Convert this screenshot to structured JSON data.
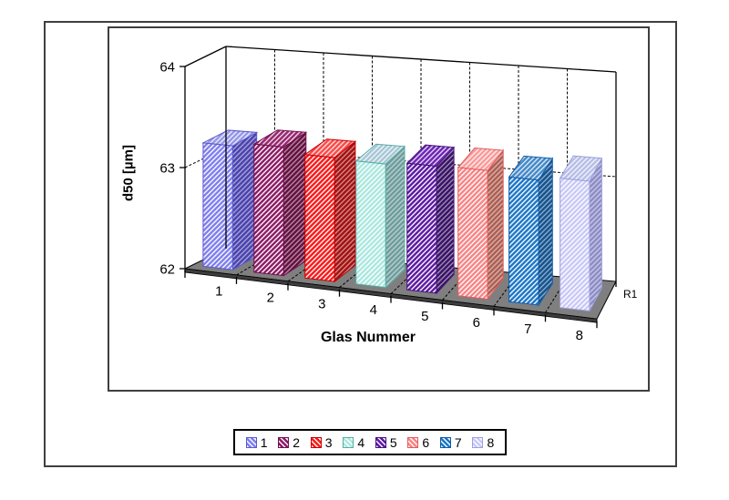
{
  "chart_data": {
    "type": "bar",
    "projection": "3d-perspective",
    "title": "",
    "xlabel": "Glas Nummer",
    "ylabel": "d50 [µm]",
    "series_label": "R1",
    "categories": [
      "1",
      "2",
      "3",
      "4",
      "5",
      "6",
      "7",
      "8"
    ],
    "values": [
      63.22,
      63.26,
      63.21,
      63.2,
      63.23,
      63.24,
      63.2,
      63.24
    ],
    "ylim": [
      62,
      64
    ],
    "yticks": [
      "62",
      "63",
      "64"
    ],
    "grid": "dashed horizontal at 63, dashed vertical at category boundaries",
    "legend": {
      "position": "bottom-center",
      "entries": [
        "1",
        "2",
        "3",
        "4",
        "5",
        "6",
        "7",
        "8"
      ]
    },
    "colors": {
      "front": [
        "#7F7FEF",
        "#8D1C66",
        "#FA1A1A",
        "#ABE7DF",
        "#5D1BA3",
        "#F88585",
        "#1E78C8",
        "#C9C9F7"
      ],
      "side": [
        "#4A42AE",
        "#64103F",
        "#A31010",
        "#6E9C9C",
        "#381265",
        "#AD5E52",
        "#15538F",
        "#8C8CC6"
      ],
      "top": [
        "#9595E8",
        "#97266F",
        "#FB4A4A",
        "#A6C6D6",
        "#6C25B3",
        "#F99A9A",
        "#4489C9",
        "#B6BEE6"
      ],
      "border": [
        "#5A5ACD",
        "#70104E",
        "#C40000",
        "#58ACA4",
        "#47137B",
        "#E25C5C",
        "#0F5CA8",
        "#9E9EDE"
      ],
      "hatch": "#FFFFFF",
      "floor": "#7F7F7F",
      "floor_edge": "#3C3C3C",
      "axis": "#000000"
    }
  }
}
